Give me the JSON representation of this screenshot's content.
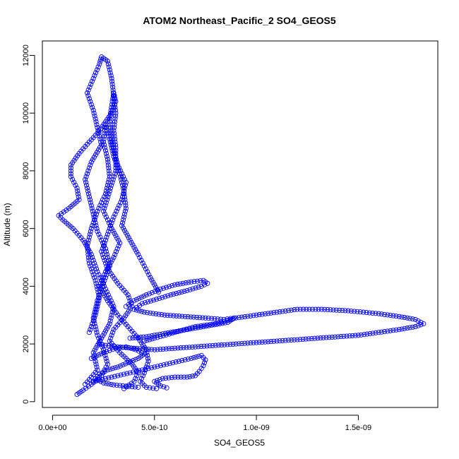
{
  "chart_data": {
    "type": "scatter",
    "title": "ATOM2 Northeast_Pacific_2 SO4_GEOS5",
    "xlabel": "SO4_GEOS5",
    "ylabel": "Altitude (m)",
    "xlim": [
      -5e-11,
      1.89e-09
    ],
    "ylim": [
      -200,
      12500
    ],
    "x_ticks": [
      0,
      5e-10,
      1e-09,
      1.5e-09
    ],
    "x_tick_labels": [
      "0.0e+00",
      "5.0e-10",
      "1.0e-09",
      "1.5e-09"
    ],
    "y_ticks": [
      0,
      2000,
      4000,
      6000,
      8000,
      10000,
      12000
    ],
    "y_tick_labels": [
      "0",
      "2000",
      "4000",
      "6000",
      "8000",
      "10000",
      "12000"
    ],
    "grid": false,
    "legend": "none",
    "marker": "open-circle",
    "color": "#0000ff",
    "series": [
      {
        "points": [
          [
            1.2e-10,
            250
          ],
          [
            1.5e-10,
            400
          ],
          [
            1.9e-10,
            600
          ],
          [
            2.4e-10,
            900
          ],
          [
            2.7e-10,
            1300
          ],
          [
            2.5e-10,
            1800
          ],
          [
            2.2e-10,
            2300
          ],
          [
            2e-10,
            2900
          ],
          [
            2.2e-10,
            3500
          ],
          [
            2.5e-10,
            4100
          ],
          [
            2.8e-10,
            4700
          ],
          [
            2.6e-10,
            5300
          ],
          [
            2.2e-10,
            5900
          ],
          [
            2e-10,
            6500
          ],
          [
            1.8e-10,
            7100
          ],
          [
            1.6e-10,
            7700
          ],
          [
            1.9e-10,
            8300
          ],
          [
            2.4e-10,
            8900
          ],
          [
            2.2e-10,
            9500
          ],
          [
            2e-10,
            10100
          ],
          [
            1.7e-10,
            10700
          ],
          [
            2e-10,
            11200
          ],
          [
            2.3e-10,
            11700
          ],
          [
            2.4e-10,
            11950
          ],
          [
            2.7e-10,
            11800
          ],
          [
            2.9e-10,
            11200
          ],
          [
            3e-10,
            10600
          ],
          [
            3.1e-10,
            10000
          ],
          [
            3e-10,
            9400
          ],
          [
            3.1e-10,
            8800
          ],
          [
            3.1e-10,
            8000
          ],
          [
            2.8e-10,
            7300
          ],
          [
            2.5e-10,
            6600
          ],
          [
            2.9e-10,
            6000
          ],
          [
            3.3e-10,
            5500
          ],
          [
            3e-10,
            5000
          ],
          [
            2.6e-10,
            4500
          ],
          [
            2.3e-10,
            4000
          ],
          [
            2.7e-10,
            3500
          ],
          [
            3.2e-10,
            3000
          ],
          [
            3.7e-10,
            2600
          ],
          [
            4.2e-10,
            2200
          ],
          [
            4.6e-10,
            1800
          ],
          [
            4.7e-10,
            1400
          ],
          [
            4.5e-10,
            1000
          ],
          [
            4.3e-10,
            700
          ],
          [
            4.6e-10,
            500
          ],
          [
            5.1e-10,
            450
          ]
        ]
      },
      {
        "points": [
          [
            1.6e-10,
            600
          ],
          [
            2.2e-10,
            1100
          ],
          [
            2e-10,
            1700
          ],
          [
            2.4e-10,
            2200
          ],
          [
            2.8e-10,
            2700
          ],
          [
            3e-10,
            3300
          ],
          [
            2.6e-10,
            3900
          ],
          [
            2.2e-10,
            4500
          ],
          [
            1.9e-10,
            5100
          ],
          [
            1.5e-10,
            5600
          ],
          [
            1e-10,
            6000
          ],
          [
            5e-11,
            6300
          ],
          [
            3e-11,
            6450
          ],
          [
            8e-11,
            6700
          ],
          [
            1.3e-10,
            7000
          ],
          [
            1.2e-10,
            7400
          ],
          [
            9e-11,
            7800
          ],
          [
            9e-11,
            8200
          ],
          [
            1.3e-10,
            8600
          ],
          [
            1.8e-10,
            9000
          ],
          [
            2.2e-10,
            9300
          ],
          [
            2.6e-10,
            9700
          ],
          [
            2.9e-10,
            10000
          ],
          [
            3.1e-10,
            10400
          ],
          [
            3e-10,
            10700
          ],
          [
            2.8e-10,
            9800
          ],
          [
            2.9e-10,
            9000
          ],
          [
            3.2e-10,
            8200
          ],
          [
            3.6e-10,
            7600
          ],
          [
            3.4e-10,
            7000
          ],
          [
            3e-10,
            6400
          ],
          [
            2.7e-10,
            5800
          ],
          [
            2.4e-10,
            5200
          ],
          [
            2.7e-10,
            4600
          ],
          [
            3.2e-10,
            4100
          ],
          [
            3.7e-10,
            3700
          ],
          [
            3.9e-10,
            3300
          ],
          [
            3.5e-10,
            2900
          ],
          [
            3e-10,
            2500
          ],
          [
            2.8e-10,
            2100
          ],
          [
            3.3e-10,
            1700
          ],
          [
            3.9e-10,
            1300
          ],
          [
            4.2e-10,
            1000
          ],
          [
            4e-10,
            700
          ],
          [
            3.5e-10,
            450
          ]
        ]
      },
      {
        "points": [
          [
            4.5e-10,
            2100
          ],
          [
            5e-10,
            2200
          ],
          [
            6e-10,
            2400
          ],
          [
            7e-10,
            2600
          ],
          [
            8e-10,
            2700
          ],
          [
            9e-10,
            2900
          ],
          [
            1e-09,
            3000
          ],
          [
            1.1e-09,
            3100
          ],
          [
            1.2e-09,
            3200
          ],
          [
            1.32e-09,
            3200
          ],
          [
            1.45e-09,
            3150
          ],
          [
            1.6e-09,
            3050
          ],
          [
            1.7e-09,
            2950
          ],
          [
            1.78e-09,
            2850
          ],
          [
            1.82e-09,
            2700
          ],
          [
            1.78e-09,
            2600
          ],
          [
            1.7e-09,
            2500
          ],
          [
            1.6e-09,
            2400
          ],
          [
            1.5e-09,
            2300
          ],
          [
            1.4e-09,
            2250
          ],
          [
            1.3e-09,
            2200
          ],
          [
            1.2e-09,
            2150
          ],
          [
            1.1e-09,
            2100
          ],
          [
            1e-09,
            2050
          ],
          [
            9e-10,
            2000
          ],
          [
            8e-10,
            1950
          ],
          [
            7e-10,
            1900
          ],
          [
            6e-10,
            1850
          ],
          [
            5e-10,
            1800
          ],
          [
            4e-10,
            1850
          ],
          [
            3.2e-10,
            1900
          ],
          [
            2.6e-10,
            1950
          ],
          [
            2.3e-10,
            2000
          ]
        ]
      },
      {
        "points": [
          [
            3.6e-10,
            3300
          ],
          [
            4e-10,
            3500
          ],
          [
            4.6e-10,
            3700
          ],
          [
            5.3e-10,
            3900
          ],
          [
            6e-10,
            4050
          ],
          [
            6.8e-10,
            4150
          ],
          [
            7.4e-10,
            4200
          ],
          [
            7.6e-10,
            4100
          ],
          [
            7.3e-10,
            4000
          ],
          [
            6.6e-10,
            3850
          ],
          [
            5.8e-10,
            3700
          ],
          [
            5.1e-10,
            3550
          ],
          [
            4.4e-10,
            3400
          ],
          [
            4e-10,
            3200
          ],
          [
            4.5e-10,
            3100
          ],
          [
            5.5e-10,
            3000
          ],
          [
            6.5e-10,
            2950
          ],
          [
            7.5e-10,
            2900
          ],
          [
            8.4e-10,
            2850
          ],
          [
            8.9e-10,
            2900
          ],
          [
            8.6e-10,
            2750
          ],
          [
            7.8e-10,
            2650
          ],
          [
            7e-10,
            2550
          ],
          [
            6.2e-10,
            2450
          ],
          [
            5.4e-10,
            2350
          ],
          [
            4.6e-10,
            2250
          ],
          [
            3.8e-10,
            2200
          ]
        ]
      },
      {
        "points": [
          [
            2e-10,
            700
          ],
          [
            2.6e-10,
            800
          ],
          [
            3.2e-10,
            900
          ],
          [
            3.8e-10,
            1000
          ],
          [
            4.4e-10,
            1100
          ],
          [
            5e-10,
            1200
          ],
          [
            5.6e-10,
            1300
          ],
          [
            6.2e-10,
            1400
          ],
          [
            6.8e-10,
            1500
          ],
          [
            7.3e-10,
            1600
          ],
          [
            7.5e-10,
            1450
          ],
          [
            7.4e-10,
            1250
          ],
          [
            7.2e-10,
            1050
          ],
          [
            7e-10,
            900
          ],
          [
            6.6e-10,
            850
          ],
          [
            6e-10,
            850
          ],
          [
            5.4e-10,
            800
          ],
          [
            5e-10,
            700
          ],
          [
            5.3e-10,
            550
          ],
          [
            5.6e-10,
            480
          ]
        ]
      },
      {
        "points": [
          [
            1.8e-10,
            2400
          ],
          [
            2.1e-10,
            3000
          ],
          [
            2.3e-10,
            3600
          ],
          [
            2.1e-10,
            4200
          ],
          [
            1.8e-10,
            4800
          ],
          [
            1.7e-10,
            5400
          ],
          [
            1.9e-10,
            6000
          ],
          [
            2.2e-10,
            6600
          ],
          [
            2.6e-10,
            7200
          ],
          [
            2.8e-10,
            7800
          ],
          [
            2.7e-10,
            8400
          ],
          [
            2.5e-10,
            9000
          ],
          [
            2.6e-10,
            9600
          ],
          [
            2.8e-10,
            9100
          ],
          [
            3e-10,
            8500
          ],
          [
            3.3e-10,
            7900
          ],
          [
            3.5e-10,
            7300
          ],
          [
            3.6e-10,
            6700
          ],
          [
            3.4e-10,
            6100
          ],
          [
            3.8e-10,
            5600
          ],
          [
            4.2e-10,
            5100
          ],
          [
            4.5e-10,
            4700
          ],
          [
            4.8e-10,
            4300
          ],
          [
            5.2e-10,
            3800
          ]
        ]
      },
      {
        "points": [
          [
            1.9e-10,
            1500
          ],
          [
            2.5e-10,
            1700
          ],
          [
            3.1e-10,
            1850
          ],
          [
            3.6e-10,
            1900
          ],
          [
            4.1e-10,
            1800
          ],
          [
            4.5e-10,
            1650
          ],
          [
            4.2e-10,
            1500
          ],
          [
            3.7e-10,
            1350
          ],
          [
            3.2e-10,
            1200
          ],
          [
            2.7e-10,
            1100
          ],
          [
            2.3e-10,
            950
          ],
          [
            2.1e-10,
            800
          ],
          [
            2.5e-10,
            650
          ],
          [
            3e-10,
            580
          ],
          [
            3.6e-10,
            540
          ],
          [
            4.2e-10,
            500
          ]
        ]
      }
    ]
  }
}
